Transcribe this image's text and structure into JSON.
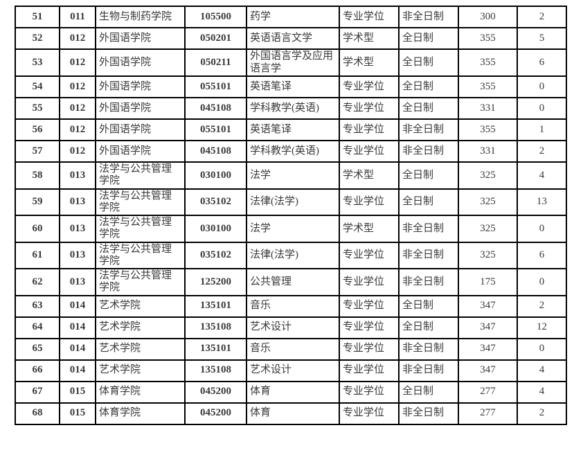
{
  "table": {
    "rows": [
      [
        "51",
        "011",
        "生物与制药学院",
        "105500",
        "药学",
        "专业学位",
        "非全日制",
        "300",
        "2"
      ],
      [
        "52",
        "012",
        "外国语学院",
        "050201",
        "英语语言文学",
        "学术型",
        "全日制",
        "355",
        "5"
      ],
      [
        "53",
        "012",
        "外国语学院",
        "050211",
        "外国语言学及应用语言学",
        "学术型",
        "全日制",
        "355",
        "6"
      ],
      [
        "54",
        "012",
        "外国语学院",
        "055101",
        "英语笔译",
        "专业学位",
        "全日制",
        "355",
        "0"
      ],
      [
        "55",
        "012",
        "外国语学院",
        "045108",
        "学科教学(英语)",
        "专业学位",
        "全日制",
        "331",
        "0"
      ],
      [
        "56",
        "012",
        "外国语学院",
        "055101",
        "英语笔译",
        "专业学位",
        "非全日制",
        "355",
        "1"
      ],
      [
        "57",
        "012",
        "外国语学院",
        "045108",
        "学科教学(英语)",
        "专业学位",
        "非全日制",
        "331",
        "2"
      ],
      [
        "58",
        "013",
        "法学与公共管理学院",
        "030100",
        "法学",
        "学术型",
        "全日制",
        "325",
        "4"
      ],
      [
        "59",
        "013",
        "法学与公共管理学院",
        "035102",
        "法律(法学)",
        "专业学位",
        "全日制",
        "325",
        "13"
      ],
      [
        "60",
        "013",
        "法学与公共管理学院",
        "030100",
        "法学",
        "学术型",
        "非全日制",
        "325",
        "0"
      ],
      [
        "61",
        "013",
        "法学与公共管理学院",
        "035102",
        "法律(法学)",
        "专业学位",
        "非全日制",
        "325",
        "6"
      ],
      [
        "62",
        "013",
        "法学与公共管理学院",
        "125200",
        "公共管理",
        "专业学位",
        "非全日制",
        "175",
        "0"
      ],
      [
        "63",
        "014",
        "艺术学院",
        "135101",
        "音乐",
        "专业学位",
        "全日制",
        "347",
        "2"
      ],
      [
        "64",
        "014",
        "艺术学院",
        "135108",
        "艺术设计",
        "专业学位",
        "全日制",
        "347",
        "12"
      ],
      [
        "65",
        "014",
        "艺术学院",
        "135101",
        "音乐",
        "专业学位",
        "非全日制",
        "347",
        "0"
      ],
      [
        "66",
        "014",
        "艺术学院",
        "135108",
        "艺术设计",
        "专业学位",
        "非全日制",
        "347",
        "4"
      ],
      [
        "67",
        "015",
        "体育学院",
        "045200",
        "体育",
        "专业学位",
        "全日制",
        "277",
        "4"
      ],
      [
        "68",
        "015",
        "体育学院",
        "045200",
        "体育",
        "专业学位",
        "非全日制",
        "277",
        "2"
      ]
    ],
    "border_color": "#000000",
    "text_color": "#3a3a3a"
  }
}
